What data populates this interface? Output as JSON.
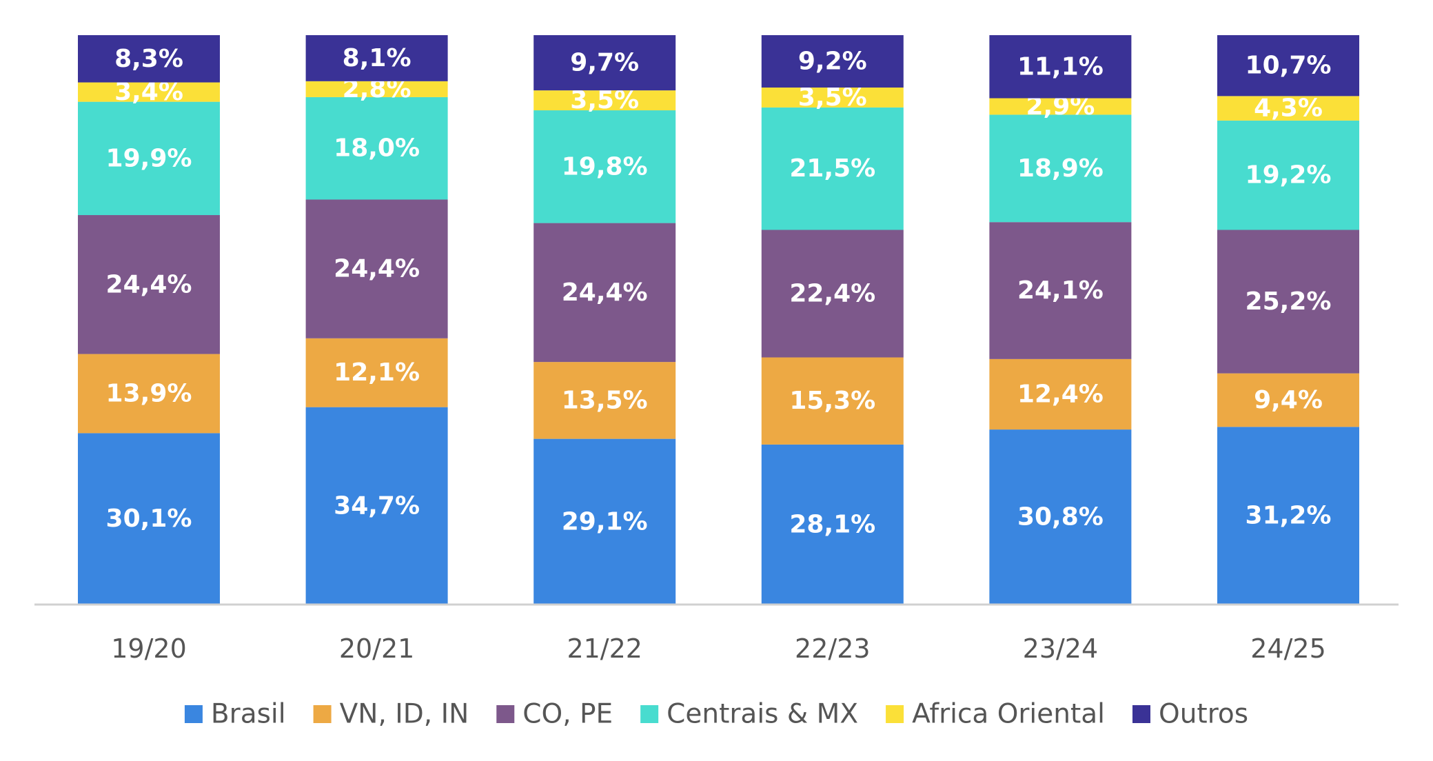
{
  "chart_data": {
    "type": "bar",
    "stacked": true,
    "categories": [
      "19/20",
      "20/21",
      "21/22",
      "22/23",
      "23/24",
      "24/25"
    ],
    "series": [
      {
        "name": "Brasil",
        "color": "#3A86E0",
        "values": [
          30.1,
          34.7,
          29.1,
          28.1,
          30.8,
          31.2
        ],
        "labels": [
          "30,1%",
          "34,7%",
          "29,1%",
          "28,1%",
          "30,8%",
          "31,2%"
        ]
      },
      {
        "name": "VN, ID, IN",
        "color": "#EDA944",
        "values": [
          13.9,
          12.1,
          13.5,
          15.3,
          12.4,
          9.4
        ],
        "labels": [
          "13,9%",
          "12,1%",
          "13,5%",
          "15,3%",
          "12,4%",
          "9,4%"
        ]
      },
      {
        "name": "CO, PE",
        "color": "#7D588B",
        "values": [
          24.4,
          24.4,
          24.4,
          22.4,
          24.1,
          25.2
        ],
        "labels": [
          "24,4%",
          "24,4%",
          "24,4%",
          "22,4%",
          "24,1%",
          "25,2%"
        ]
      },
      {
        "name": "Centrais & MX",
        "color": "#48DCCF",
        "values": [
          19.9,
          18.0,
          19.8,
          21.5,
          18.9,
          19.2
        ],
        "labels": [
          "19,9%",
          "18,0%",
          "19,8%",
          "21,5%",
          "18,9%",
          "19,2%"
        ]
      },
      {
        "name": "Africa Oriental",
        "color": "#FBE038",
        "values": [
          3.4,
          2.8,
          3.5,
          3.5,
          2.9,
          4.3
        ],
        "labels": [
          "3,4%",
          "2,8%",
          "3,5%",
          "3,5%",
          "2,9%",
          "4,3%"
        ]
      },
      {
        "name": "Outros",
        "color": "#3A3296",
        "values": [
          8.3,
          8.1,
          9.7,
          9.2,
          11.1,
          10.7
        ],
        "labels": [
          "8,3%",
          "8,1%",
          "9,7%",
          "9,2%",
          "11,1%",
          "10,7%"
        ]
      }
    ],
    "ylim": [
      0,
      100
    ],
    "grid": false,
    "legend_position": "bottom"
  }
}
